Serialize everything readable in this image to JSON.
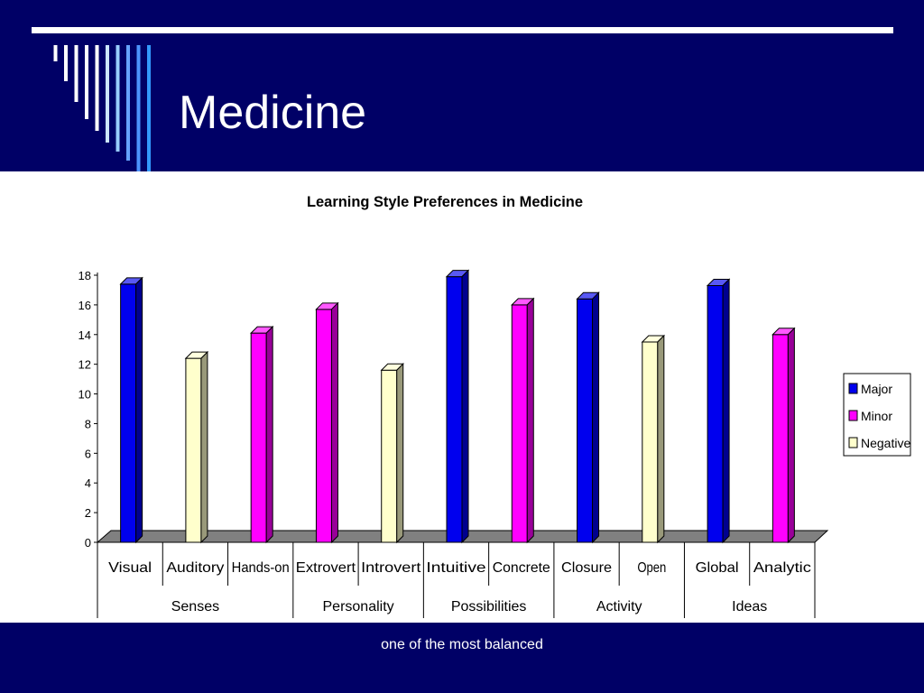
{
  "slide": {
    "title": "Medicine",
    "footer_note": "one of the most balanced"
  },
  "colors": {
    "background_band": "#000066",
    "major": "#0000ee",
    "minor": "#ff00ff",
    "negative": "#ffffcc",
    "floor": "#808080"
  },
  "chart_data": {
    "type": "bar",
    "title": "Learning Style Preferences in Medicine",
    "xlabel": "",
    "ylabel": "",
    "ylim": [
      0,
      18
    ],
    "yticks": [
      0,
      2,
      4,
      6,
      8,
      10,
      12,
      14,
      16,
      18
    ],
    "categories": [
      "Visual",
      "Auditory",
      "Hands-on",
      "Extrovert",
      "Introvert",
      "Intuitive",
      "Concrete",
      "Closure",
      "Open",
      "Global",
      "Analytic"
    ],
    "groups": [
      {
        "name": "Senses",
        "span": 3
      },
      {
        "name": "Personality",
        "span": 2
      },
      {
        "name": "Possibilities",
        "span": 2
      },
      {
        "name": "Activity",
        "span": 2
      },
      {
        "name": "Ideas",
        "span": 2
      }
    ],
    "series": [
      {
        "name": "Major",
        "color": "#0000ee",
        "values": [
          17.4,
          null,
          null,
          null,
          null,
          17.9,
          null,
          16.4,
          null,
          17.3,
          null
        ]
      },
      {
        "name": "Minor",
        "color": "#ff00ff",
        "values": [
          null,
          null,
          14.1,
          15.7,
          null,
          null,
          16.0,
          null,
          null,
          null,
          14.0
        ]
      },
      {
        "name": "Negative",
        "color": "#ffffcc",
        "values": [
          null,
          12.4,
          null,
          null,
          11.6,
          null,
          null,
          null,
          13.5,
          null,
          null
        ]
      }
    ],
    "legend_position": "right",
    "grid": false,
    "three_d": true
  }
}
